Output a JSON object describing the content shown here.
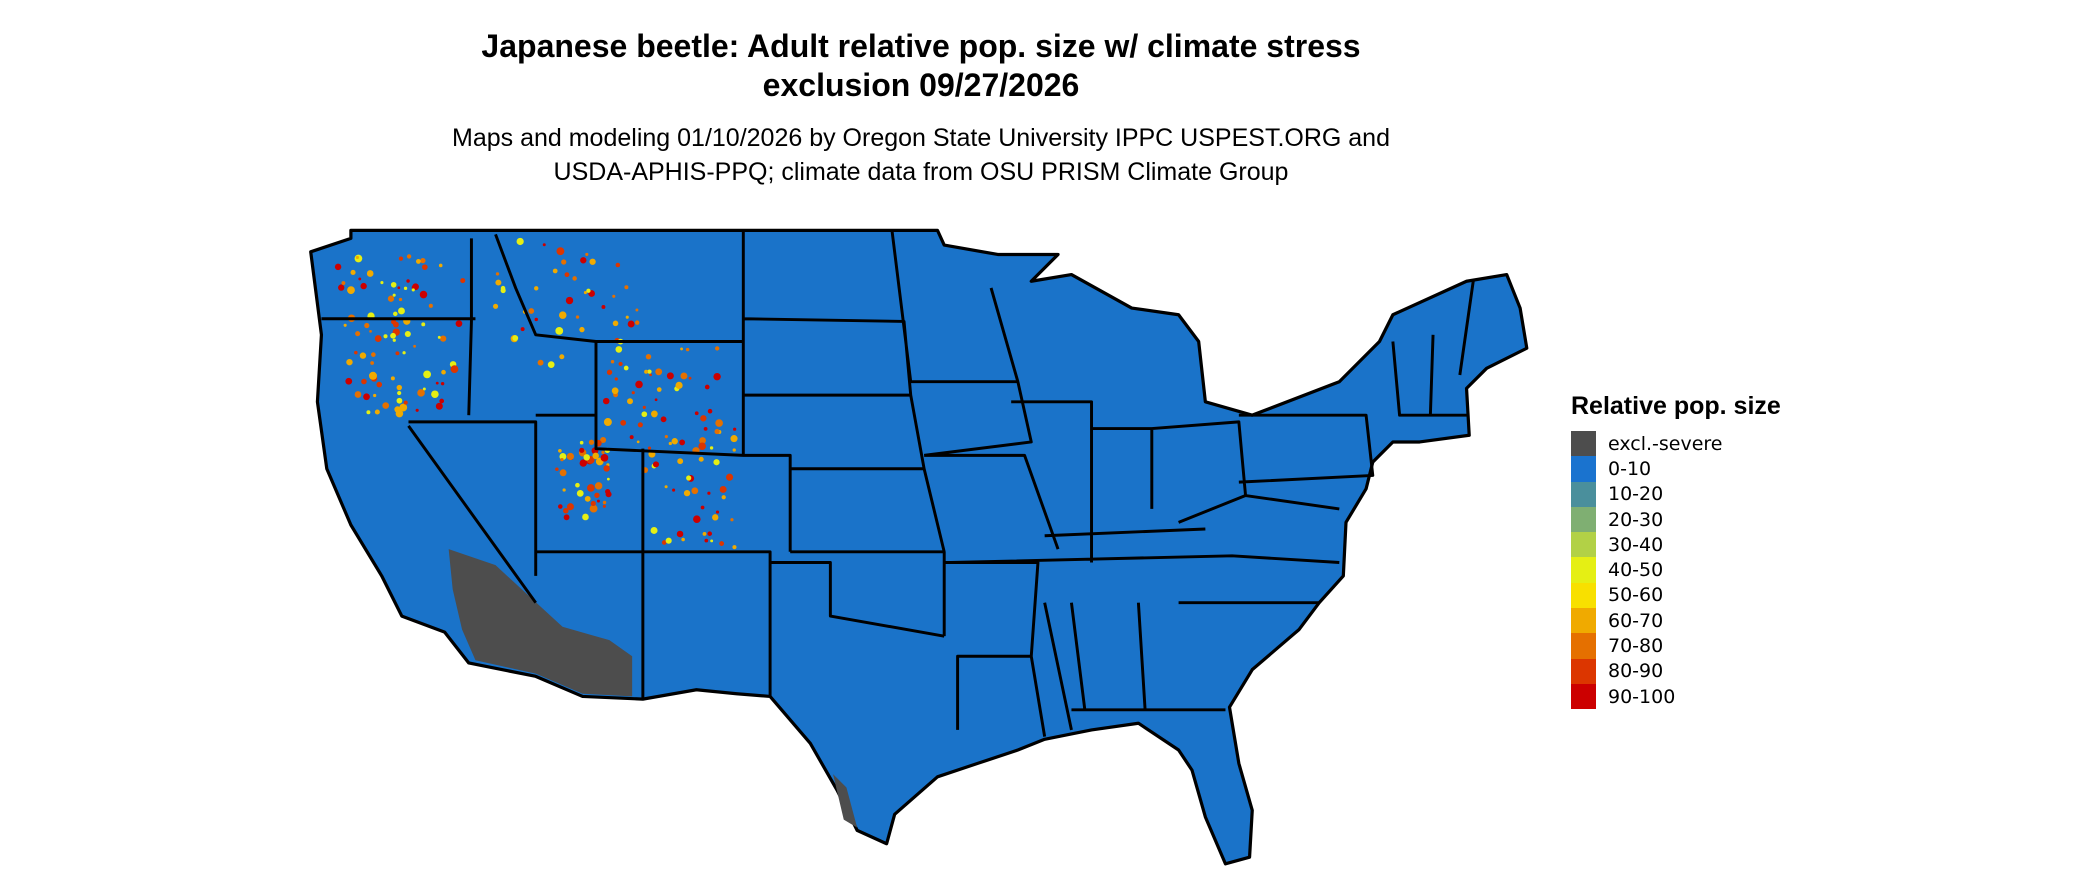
{
  "title": {
    "line1": "Japanese beetle: Adult relative pop. size w/ climate stress",
    "line2": "exclusion 09/27/2026"
  },
  "subtitle": {
    "line1": "Maps and modeling 01/10/2026 by Oregon State University IPPC USPEST.ORG and",
    "line2": "USDA-APHIS-PPQ; climate data from OSU PRISM Climate Group"
  },
  "map": {
    "region": "Contiguous United States",
    "base_color": "#1a73c9",
    "excluded_color": "#4d4d4d",
    "border_color": "#000000"
  },
  "legend": {
    "title": "Relative pop. size",
    "items": [
      {
        "label": "excl.-severe",
        "color": "#4d4d4d"
      },
      {
        "label": "0-10",
        "color": "#1a73cf"
      },
      {
        "label": "10-20",
        "color": "#4a8f9c"
      },
      {
        "label": "20-30",
        "color": "#7faf72"
      },
      {
        "label": "30-40",
        "color": "#b2d146"
      },
      {
        "label": "40-50",
        "color": "#e5ef14"
      },
      {
        "label": "50-60",
        "color": "#f8e000"
      },
      {
        "label": "60-70",
        "color": "#f0aa00"
      },
      {
        "label": "70-80",
        "color": "#e57000"
      },
      {
        "label": "80-90",
        "color": "#dc3600"
      },
      {
        "label": "90-100",
        "color": "#cc0000"
      }
    ]
  }
}
